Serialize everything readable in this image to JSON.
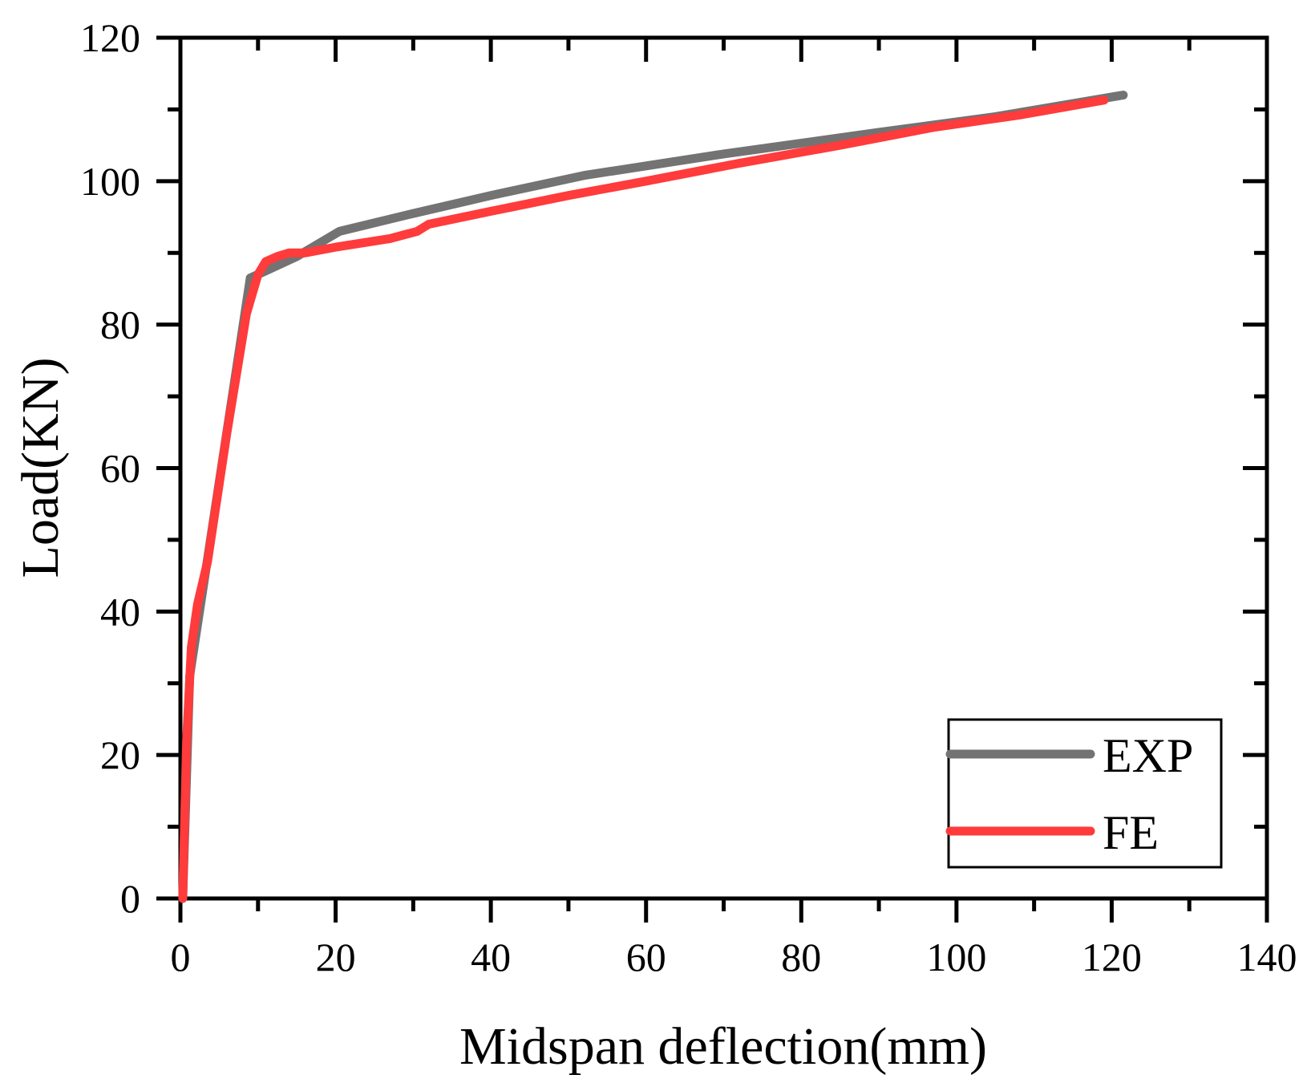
{
  "chart_data": {
    "type": "line",
    "title": "",
    "xlabel": "Midspan deflection(mm)",
    "ylabel": "Load(KN)",
    "xlim": [
      0,
      140
    ],
    "ylim": [
      0,
      120
    ],
    "xticks": [
      0,
      20,
      40,
      60,
      80,
      100,
      120,
      140
    ],
    "yticks": [
      0,
      20,
      40,
      60,
      80,
      100,
      120
    ],
    "xtick_labels": [
      "0",
      "20",
      "40",
      "60",
      "80",
      "100",
      "120",
      "140"
    ],
    "ytick_labels": [
      "0",
      "20",
      "40",
      "60",
      "80",
      "100",
      "120"
    ],
    "grid": false,
    "legend_position": "bottom-right",
    "series": [
      {
        "name": "EXP",
        "color": "#737373",
        "x": [
          0.3,
          1.2,
          9.0,
          11.0,
          15.0,
          20.5,
          30.0,
          40.0,
          52.0,
          70.0,
          90.0,
          105.0,
          121.5
        ],
        "y": [
          0,
          31.0,
          86.5,
          87.5,
          89.5,
          93.0,
          95.5,
          98.0,
          100.8,
          103.8,
          106.8,
          109.0,
          112.0
        ]
      },
      {
        "name": "FE",
        "color": "#FF3B3B",
        "x": [
          0.3,
          0.8,
          1.4,
          2.2,
          3.5,
          6.0,
          8.5,
          10.0,
          11.0,
          12.5,
          14.0,
          16.0,
          20.0,
          27.0,
          30.5,
          32.0,
          40.0,
          50.0,
          60.0,
          72.0,
          85.0,
          97.0,
          108.0,
          119.0
        ],
        "y": [
          0,
          22.0,
          35.0,
          41.0,
          47.0,
          65.0,
          81.5,
          87.0,
          88.8,
          89.5,
          90.0,
          90.0,
          90.8,
          92.0,
          93.0,
          94.0,
          95.8,
          98.0,
          100.0,
          102.5,
          105.0,
          107.5,
          109.2,
          111.3
        ]
      }
    ]
  }
}
